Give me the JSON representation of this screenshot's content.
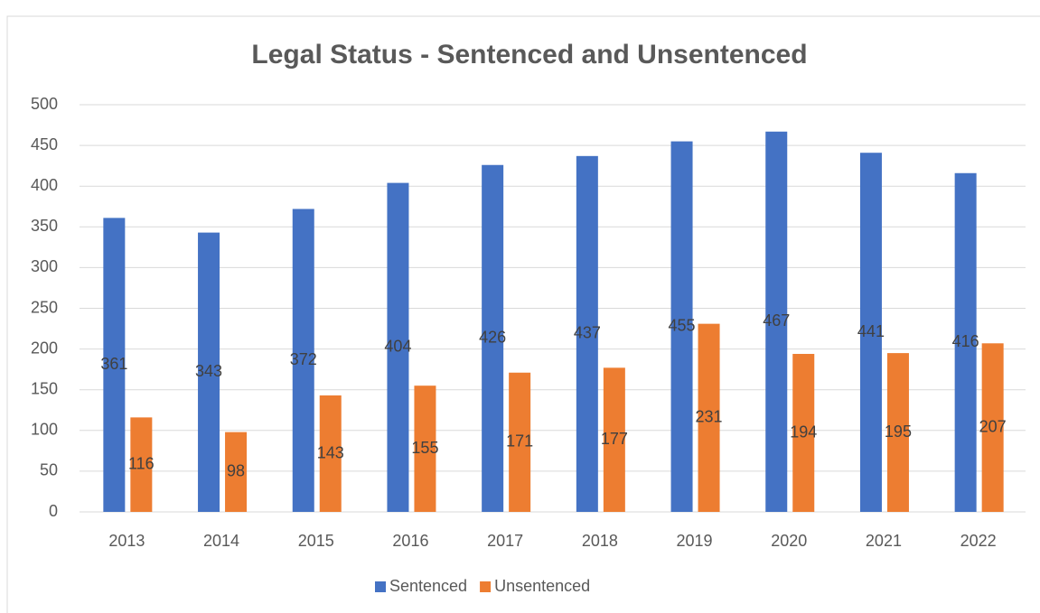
{
  "chart_data": {
    "type": "bar",
    "title": "Legal Status - Sentenced and Unsentenced",
    "categories": [
      "2013",
      "2014",
      "2015",
      "2016",
      "2017",
      "2018",
      "2019",
      "2020",
      "2021",
      "2022"
    ],
    "series": [
      {
        "name": "Sentenced",
        "color": "#4472c4",
        "values": [
          361,
          343,
          372,
          404,
          426,
          437,
          455,
          467,
          441,
          416
        ]
      },
      {
        "name": "Unsentenced",
        "color": "#ed7d31",
        "values": [
          116,
          98,
          143,
          155,
          171,
          177,
          231,
          194,
          195,
          207
        ]
      }
    ],
    "ylim": [
      0,
      500
    ],
    "yticks": [
      0,
      50,
      100,
      150,
      200,
      250,
      300,
      350,
      400,
      450,
      500
    ],
    "grid": true,
    "legend": "bottom"
  }
}
